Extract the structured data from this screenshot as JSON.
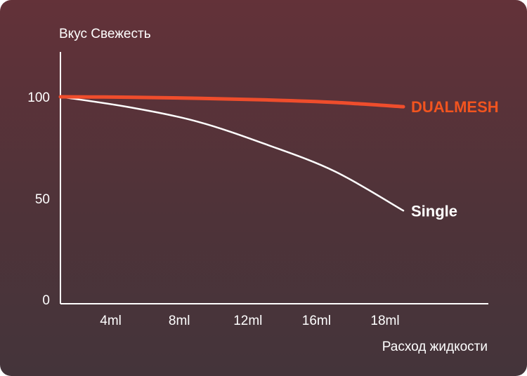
{
  "chart_data": {
    "type": "line",
    "ylabel": "Вкус Свежесть",
    "xlabel": "Расход жидкости",
    "categories": [
      "4ml",
      "8ml",
      "12ml",
      "16ml",
      "18ml"
    ],
    "yticks": [
      "100",
      "50",
      "0"
    ],
    "ylim": [
      0,
      100
    ],
    "grid": false,
    "legend": "inline-right",
    "series": [
      {
        "name": "DUALMESH",
        "color": "#ef4d2c",
        "x": [
          0,
          1,
          2,
          3,
          4,
          5
        ],
        "values": [
          100,
          99.8,
          99.3,
          98.5,
          97.3,
          95.2
        ]
      },
      {
        "name": "Single",
        "color": "#ffffff",
        "x": [
          0,
          1,
          2,
          3,
          4,
          5
        ],
        "values": [
          100,
          95,
          88,
          77,
          64,
          45
        ]
      }
    ]
  }
}
